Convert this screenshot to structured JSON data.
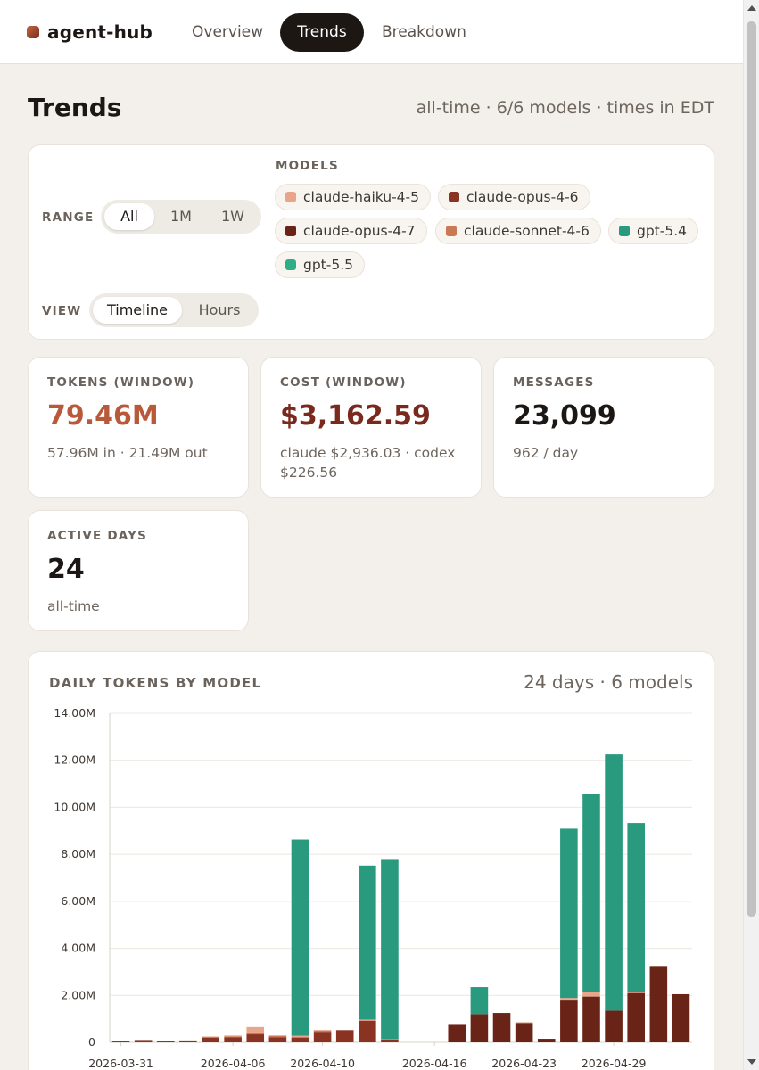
{
  "app": {
    "brand": "agent-hub",
    "tabs": [
      {
        "label": "Overview",
        "active": false
      },
      {
        "label": "Trends",
        "active": true
      },
      {
        "label": "Breakdown",
        "active": false
      }
    ]
  },
  "page": {
    "title": "Trends",
    "meta": "all-time · 6/6 models · times in EDT"
  },
  "filters": {
    "range_label": "RANGE",
    "range_options": [
      "All",
      "1M",
      "1W"
    ],
    "range_selected": "All",
    "view_label": "VIEW",
    "view_options": [
      "Timeline",
      "Hours"
    ],
    "view_selected": "Timeline",
    "models_label": "MODELS",
    "models": [
      {
        "name": "claude-haiku-4-5",
        "color": "#e8a58a"
      },
      {
        "name": "claude-opus-4-6",
        "color": "#8b3322"
      },
      {
        "name": "claude-opus-4-7",
        "color": "#6a2417"
      },
      {
        "name": "claude-sonnet-4-6",
        "color": "#c97a55"
      },
      {
        "name": "gpt-5.4",
        "color": "#2a9a7e"
      },
      {
        "name": "gpt-5.5",
        "color": "#2fae86"
      }
    ]
  },
  "stats": [
    {
      "label": "TOKENS (WINDOW)",
      "value": "79.46M",
      "sub": "57.96M in · 21.49M out",
      "color": "#b8593a"
    },
    {
      "label": "COST (WINDOW)",
      "value": "$3,162.59",
      "sub": "claude $2,936.03 · codex $226.56",
      "color": "#7a2a1c"
    },
    {
      "label": "MESSAGES",
      "value": "23,099",
      "sub": "962 / day",
      "color": "#1c1714"
    },
    {
      "label": "ACTIVE DAYS",
      "value": "24",
      "sub": "all-time",
      "color": "#1c1714"
    }
  ],
  "chart": {
    "title": "DAILY TOKENS BY MODEL",
    "meta": "24 days · 6 models"
  },
  "chart_data": {
    "type": "bar",
    "stacked": true,
    "title": "DAILY TOKENS BY MODEL",
    "ylim": [
      0,
      14000000
    ],
    "yticks": [
      "0",
      "2.00M",
      "4.00M",
      "6.00M",
      "8.00M",
      "10.00M",
      "12.00M",
      "14.00M"
    ],
    "ytick_values": [
      0,
      2000000,
      4000000,
      6000000,
      8000000,
      10000000,
      12000000,
      14000000
    ],
    "categories": [
      "2026-03-31",
      "2026-04-01",
      "2026-04-02",
      "2026-04-03",
      "2026-04-05",
      "2026-04-06",
      "2026-04-07",
      "2026-04-08",
      "2026-04-09",
      "2026-04-10",
      "2026-04-11",
      "2026-04-13",
      "2026-04-14",
      "2026-04-15",
      "2026-04-16",
      "2026-04-17",
      "2026-04-19",
      "2026-04-20",
      "2026-04-23",
      "2026-04-24",
      "2026-04-26",
      "2026-04-27",
      "2026-04-29",
      "2026-04-30",
      "2026-05-01",
      "2026-05-02"
    ],
    "xtick_labels": [
      "2026-03-31",
      "2026-04-06",
      "2026-04-10",
      "2026-04-16",
      "2026-04-23",
      "2026-04-29"
    ],
    "series": [
      {
        "name": "claude-opus-4-7",
        "color": "#6a2417",
        "values": [
          0,
          0,
          0,
          0,
          0,
          0,
          0,
          0,
          0,
          0,
          0,
          0,
          0,
          0,
          0,
          780000,
          1200000,
          1250000,
          820000,
          150000,
          1780000,
          1950000,
          1350000,
          2100000,
          3250000,
          2050000
        ]
      },
      {
        "name": "claude-opus-4-6",
        "color": "#8b3322",
        "values": [
          50000,
          100000,
          60000,
          80000,
          200000,
          220000,
          340000,
          220000,
          200000,
          450000,
          520000,
          920000,
          120000,
          0,
          0,
          0,
          0,
          0,
          0,
          0,
          0,
          0,
          0,
          0,
          0,
          0
        ]
      },
      {
        "name": "claude-sonnet-4-6",
        "color": "#c97a55",
        "values": [
          0,
          0,
          0,
          0,
          30000,
          30000,
          80000,
          50000,
          40000,
          50000,
          0,
          20000,
          30000,
          0,
          0,
          0,
          0,
          0,
          30000,
          0,
          50000,
          0,
          0,
          0,
          0,
          0
        ]
      },
      {
        "name": "claude-haiku-4-5",
        "color": "#e8a58a",
        "values": [
          0,
          0,
          0,
          0,
          20000,
          40000,
          230000,
          30000,
          40000,
          30000,
          0,
          30000,
          0,
          0,
          0,
          0,
          0,
          0,
          0,
          0,
          60000,
          180000,
          0,
          30000,
          0,
          0
        ]
      },
      {
        "name": "gpt-5.4",
        "color": "#2a9a7e",
        "values": [
          0,
          0,
          0,
          0,
          0,
          0,
          0,
          0,
          8350000,
          0,
          0,
          6550000,
          7650000,
          0,
          0,
          0,
          1150000,
          0,
          0,
          0,
          7200000,
          8450000,
          10900000,
          7200000,
          0,
          0
        ]
      },
      {
        "name": "gpt-5.5",
        "color": "#2fae86",
        "values": [
          0,
          0,
          0,
          0,
          0,
          0,
          0,
          0,
          0,
          0,
          0,
          0,
          0,
          0,
          0,
          0,
          0,
          0,
          0,
          0,
          0,
          0,
          0,
          0,
          0,
          0
        ]
      }
    ]
  }
}
